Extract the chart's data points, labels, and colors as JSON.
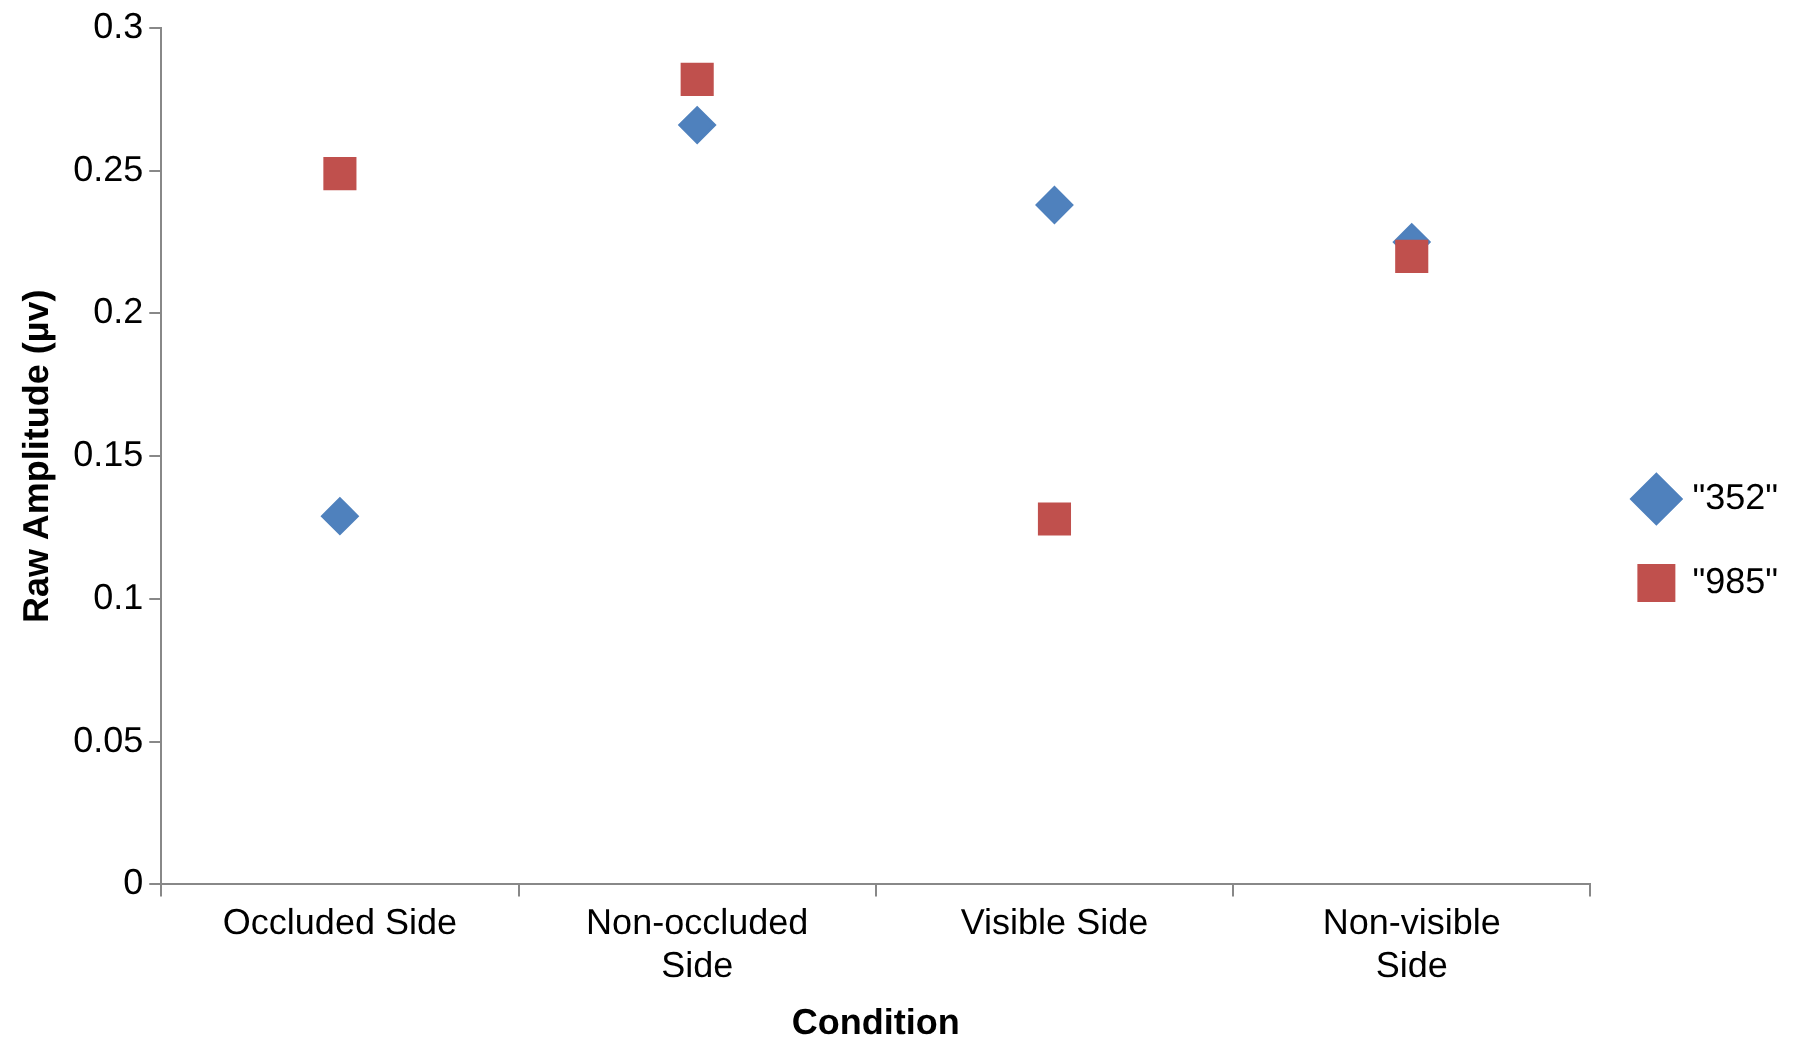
{
  "chart_data": {
    "type": "scatter",
    "xlabel": "Condition",
    "ylabel": "Raw Amplitude (µv)",
    "categories": [
      "Occluded Side",
      "Non-occluded Side",
      "Visible Side",
      "Non-visible Side"
    ],
    "series": [
      {
        "name": "\"352\"",
        "color": "#4f81bd",
        "marker": "diamond",
        "values": [
          0.129,
          0.266,
          0.238,
          0.225
        ]
      },
      {
        "name": "\"985\"",
        "color": "#c0504d",
        "marker": "square",
        "values": [
          0.249,
          0.282,
          0.128,
          0.22
        ]
      }
    ],
    "ylim": [
      0,
      0.3
    ],
    "yticks": [
      0,
      0.05,
      0.1,
      0.15,
      0.2,
      0.25,
      0.3
    ],
    "grid": false,
    "legend": "right"
  }
}
